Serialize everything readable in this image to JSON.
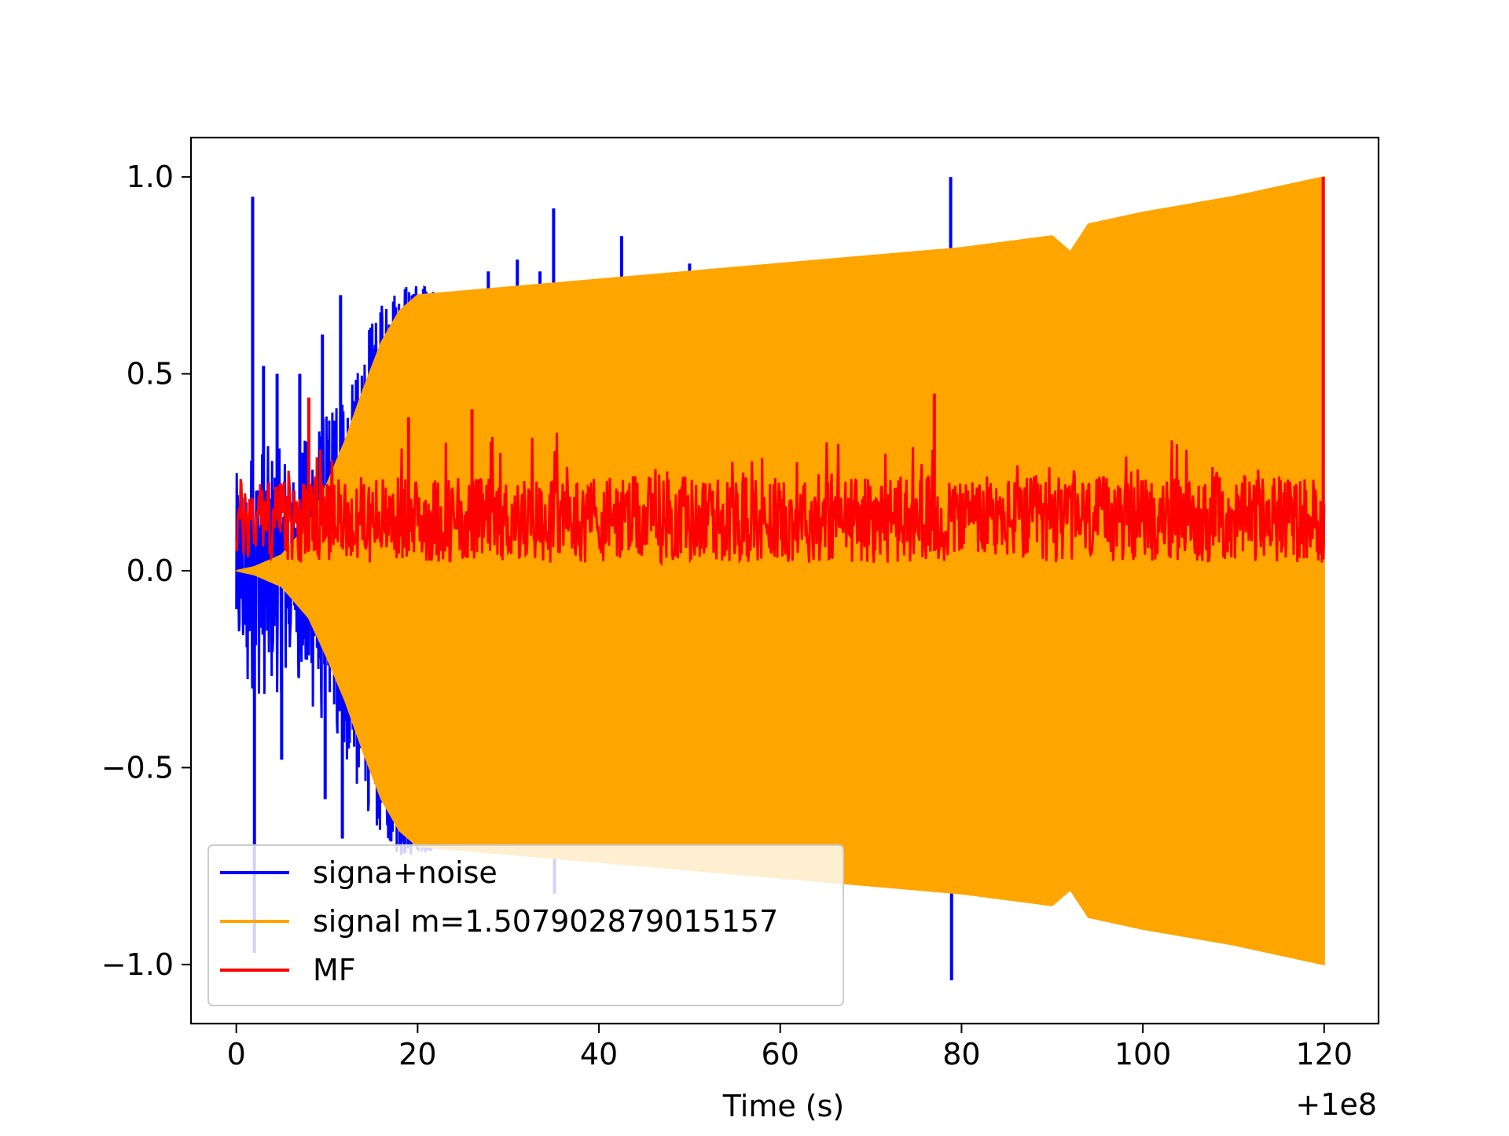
{
  "chart_data": {
    "type": "line",
    "title": "",
    "xlabel": "Time (s)",
    "ylabel": "",
    "x_offset_label": "+1e8",
    "xlim": [
      -5,
      126
    ],
    "ylim": [
      -1.15,
      1.1
    ],
    "xticks": [
      0,
      20,
      40,
      60,
      80,
      100,
      120
    ],
    "xtick_labels": [
      "0",
      "20",
      "40",
      "60",
      "80",
      "100",
      "120"
    ],
    "yticks": [
      1.0,
      0.5,
      0.0,
      -0.5,
      -1.0
    ],
    "ytick_labels": [
      "1.0",
      "0.5",
      "0.0",
      "−0.5",
      "−1.0"
    ],
    "grid": false,
    "legend_position": "lower-left",
    "series": [
      {
        "name": "signa+noise",
        "color": "#0000ff",
        "spikes": [
          {
            "x": 1.8,
            "y": 0.95
          },
          {
            "x": 2.0,
            "y": -0.97
          },
          {
            "x": 3.0,
            "y": 0.52
          },
          {
            "x": 4.5,
            "y": 0.5
          },
          {
            "x": 5.0,
            "y": -0.48
          },
          {
            "x": 7.0,
            "y": 0.5
          },
          {
            "x": 9.5,
            "y": 0.6
          },
          {
            "x": 9.8,
            "y": -0.58
          },
          {
            "x": 11.5,
            "y": 0.7
          },
          {
            "x": 11.7,
            "y": -0.68
          },
          {
            "x": 27.8,
            "y": 0.76
          },
          {
            "x": 31.0,
            "y": 0.79
          },
          {
            "x": 33.5,
            "y": 0.76
          },
          {
            "x": 35.0,
            "y": 0.92
          },
          {
            "x": 35.1,
            "y": -0.82
          },
          {
            "x": 42.5,
            "y": 0.85
          },
          {
            "x": 50.0,
            "y": 0.78
          },
          {
            "x": 78.8,
            "y": 1.0
          },
          {
            "x": 78.9,
            "y": -1.04
          }
        ]
      },
      {
        "name": "signal m=1.507902879015157",
        "color": "#ffa500",
        "envelope": [
          {
            "x": 0,
            "y": 0.0
          },
          {
            "x": 2,
            "y": 0.01
          },
          {
            "x": 5,
            "y": 0.04
          },
          {
            "x": 8,
            "y": 0.12
          },
          {
            "x": 10,
            "y": 0.22
          },
          {
            "x": 12,
            "y": 0.33
          },
          {
            "x": 14,
            "y": 0.46
          },
          {
            "x": 16,
            "y": 0.58
          },
          {
            "x": 18,
            "y": 0.66
          },
          {
            "x": 20,
            "y": 0.7
          },
          {
            "x": 25,
            "y": 0.71
          },
          {
            "x": 40,
            "y": 0.74
          },
          {
            "x": 60,
            "y": 0.78
          },
          {
            "x": 80,
            "y": 0.82
          },
          {
            "x": 90,
            "y": 0.85
          },
          {
            "x": 92,
            "y": 0.81
          },
          {
            "x": 94,
            "y": 0.88
          },
          {
            "x": 100,
            "y": 0.91
          },
          {
            "x": 110,
            "y": 0.95
          },
          {
            "x": 118,
            "y": 0.99
          },
          {
            "x": 120,
            "y": 1.0
          }
        ]
      },
      {
        "name": "MF",
        "color": "#ff0000",
        "peaks": [
          {
            "x": 8.0,
            "y": 0.44
          },
          {
            "x": 19.0,
            "y": 0.39
          },
          {
            "x": 26.0,
            "y": 0.41
          },
          {
            "x": 77.0,
            "y": 0.45
          },
          {
            "x": 119.9,
            "y": 1.0
          }
        ]
      }
    ]
  }
}
